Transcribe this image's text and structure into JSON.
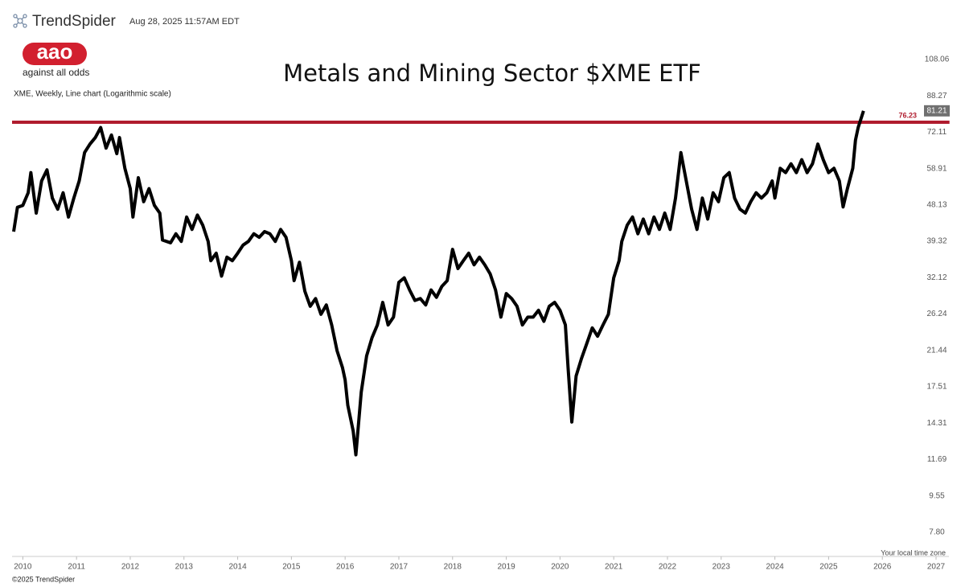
{
  "header": {
    "brand": "TrendSpider",
    "timestamp": "Aug 28, 2025 11:57AM EDT",
    "logo": "aao",
    "logo_tagline": "against all odds"
  },
  "footer": {
    "copyright": "©2025 TrendSpider",
    "timezone_note": "Your local time zone"
  },
  "chart_data": {
    "type": "line",
    "title": "Metals and Mining Sector $XME ETF",
    "subtitle": "XME, Weekly, Line chart (Logarithmic scale)",
    "log_scale": true,
    "grid": false,
    "xlim": [
      2009.8,
      2027.25
    ],
    "xticks": [
      2010,
      2011,
      2012,
      2013,
      2014,
      2015,
      2016,
      2017,
      2018,
      2019,
      2020,
      2021,
      2022,
      2023,
      2024,
      2025,
      2026,
      2027
    ],
    "ylim": [
      6.82,
      117.6
    ],
    "yticks": [
      {
        "value": 7.8,
        "label": "7.80"
      },
      9.55,
      11.69,
      14.31,
      17.51,
      21.44,
      26.24,
      32.12,
      39.32,
      48.13,
      58.91,
      72.11,
      88.27,
      108.06
    ],
    "reference_line": {
      "value": 76.23,
      "color": "#b01c2e"
    },
    "series": [
      {
        "color": "#000000",
        "x": [
          2009.83,
          2009.9,
          2010.0,
          2010.1,
          2010.15,
          2010.25,
          2010.35,
          2010.45,
          2010.55,
          2010.65,
          2010.75,
          2010.85,
          2010.95,
          2011.05,
          2011.15,
          2011.25,
          2011.35,
          2011.45,
          2011.55,
          2011.65,
          2011.75,
          2011.8,
          2011.9,
          2012.0,
          2012.05,
          2012.15,
          2012.25,
          2012.35,
          2012.45,
          2012.55,
          2012.6,
          2012.75,
          2012.85,
          2012.95,
          2013.05,
          2013.15,
          2013.25,
          2013.35,
          2013.45,
          2013.5,
          2013.6,
          2013.7,
          2013.8,
          2013.9,
          2014.0,
          2014.1,
          2014.2,
          2014.3,
          2014.4,
          2014.5,
          2014.6,
          2014.7,
          2014.8,
          2014.9,
          2015.0,
          2015.05,
          2015.15,
          2015.25,
          2015.35,
          2015.45,
          2015.55,
          2015.65,
          2015.75,
          2015.85,
          2015.95,
          2016.0,
          2016.05,
          2016.15,
          2016.2,
          2016.3,
          2016.4,
          2016.5,
          2016.6,
          2016.7,
          2016.8,
          2016.9,
          2017.0,
          2017.1,
          2017.2,
          2017.3,
          2017.4,
          2017.5,
          2017.6,
          2017.7,
          2017.8,
          2017.9,
          2018.0,
          2018.1,
          2018.2,
          2018.3,
          2018.4,
          2018.5,
          2018.6,
          2018.7,
          2018.8,
          2018.9,
          2019.0,
          2019.1,
          2019.2,
          2019.3,
          2019.4,
          2019.5,
          2019.6,
          2019.7,
          2019.8,
          2019.9,
          2020.0,
          2020.1,
          2020.15,
          2020.22,
          2020.3,
          2020.4,
          2020.5,
          2020.6,
          2020.7,
          2020.8,
          2020.9,
          2021.0,
          2021.1,
          2021.15,
          2021.25,
          2021.35,
          2021.45,
          2021.55,
          2021.65,
          2021.75,
          2021.85,
          2021.95,
          2022.05,
          2022.15,
          2022.25,
          2022.35,
          2022.45,
          2022.55,
          2022.65,
          2022.75,
          2022.85,
          2022.95,
          2023.05,
          2023.15,
          2023.25,
          2023.35,
          2023.45,
          2023.55,
          2023.65,
          2023.75,
          2023.85,
          2023.95,
          2024.0,
          2024.1,
          2024.2,
          2024.3,
          2024.4,
          2024.5,
          2024.6,
          2024.7,
          2024.8,
          2024.9,
          2025.0,
          2025.1,
          2025.2,
          2025.27,
          2025.35,
          2025.45,
          2025.5,
          2025.55,
          2025.6,
          2025.65
        ],
        "values": [
          41.5,
          47.5,
          48,
          51.5,
          57.6,
          46,
          55,
          58.5,
          50,
          47,
          51.5,
          45,
          50,
          55,
          64.4,
          67.5,
          70,
          74,
          66,
          71,
          64,
          70,
          59,
          52.7,
          45,
          56,
          49,
          52.7,
          48,
          46,
          39.6,
          39,
          41,
          39.3,
          45,
          42,
          45.5,
          43,
          39.3,
          35.3,
          36.8,
          32.4,
          36,
          35.3,
          36.8,
          38.5,
          39.3,
          41,
          40.2,
          41.5,
          41,
          39.3,
          42,
          40.2,
          35.3,
          31.6,
          35,
          29.8,
          27.4,
          28.6,
          26.2,
          27.6,
          24.7,
          21.4,
          19.5,
          18.2,
          15.8,
          13.7,
          12,
          17,
          20.8,
          23,
          24.7,
          28,
          24.7,
          25.8,
          31.3,
          32.1,
          30,
          28.3,
          28.6,
          27.6,
          30,
          28.8,
          30.6,
          31.6,
          37.6,
          33.8,
          35.3,
          36.8,
          34.5,
          36,
          34.5,
          32.8,
          30,
          25.8,
          29.4,
          28.6,
          27.4,
          24.7,
          25.8,
          25.8,
          26.8,
          25.2,
          27.4,
          28,
          26.8,
          24.7,
          19.5,
          14.4,
          18.6,
          20.5,
          22.3,
          24.3,
          23.2,
          24.7,
          26.2,
          32.1,
          35.3,
          39.3,
          43,
          45,
          41,
          44.5,
          41,
          45,
          42,
          46,
          42,
          50,
          64.4,
          55,
          47,
          42,
          50,
          44.5,
          51.5,
          49,
          56,
          57.6,
          50,
          47,
          46,
          49,
          51.5,
          50,
          51.5,
          55,
          50,
          59,
          57.6,
          60.5,
          57.6,
          61.9,
          57.6,
          60.5,
          67.5,
          61.9,
          57.6,
          59,
          55,
          47.6,
          52.7,
          59,
          69,
          74,
          77.5,
          81.21
        ]
      }
    ]
  }
}
